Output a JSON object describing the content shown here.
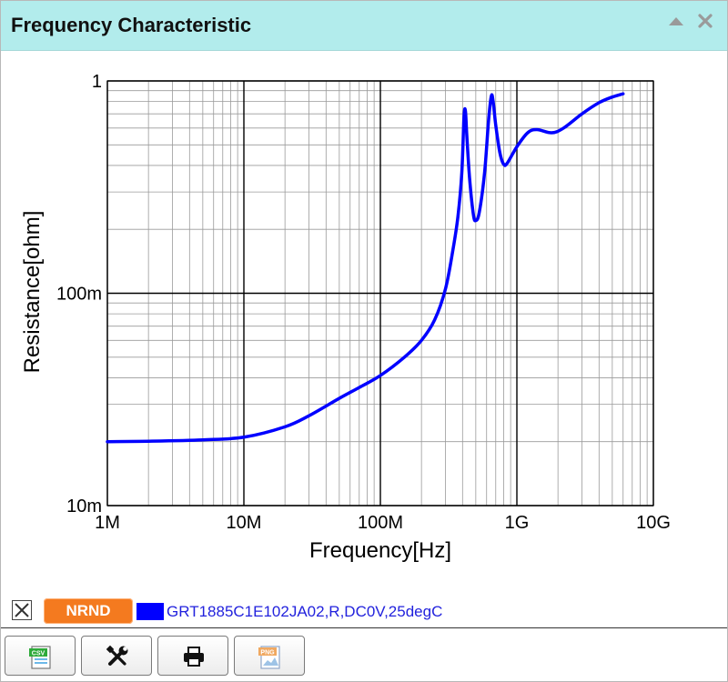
{
  "window": {
    "title": "Frequency Characteristic"
  },
  "legend": {
    "badge": "NRND",
    "label": "GRT1885C1E102JA02,R,DC0V,25degC",
    "color": "#0000ff"
  },
  "toolbar": {
    "buttons": [
      {
        "icon": "csv-icon"
      },
      {
        "icon": "settings-tools-icon"
      },
      {
        "icon": "print-icon"
      },
      {
        "icon": "png-icon"
      }
    ]
  },
  "chart_data": {
    "type": "line",
    "x_scale": "log",
    "y_scale": "log",
    "xlabel": "Frequency[Hz]",
    "ylabel": "Resistance[ohm]",
    "xlim": [
      1000000,
      10000000000
    ],
    "ylim": [
      0.01,
      1
    ],
    "grid": true,
    "x_ticks": [
      {
        "value": 1000000,
        "label": "1M"
      },
      {
        "value": 10000000,
        "label": "10M"
      },
      {
        "value": 100000000,
        "label": "100M"
      },
      {
        "value": 1000000000,
        "label": "1G"
      },
      {
        "value": 10000000000,
        "label": "10G"
      }
    ],
    "y_ticks": [
      {
        "value": 0.01,
        "label": "10m"
      },
      {
        "value": 0.1,
        "label": "100m"
      },
      {
        "value": 1,
        "label": "1"
      }
    ],
    "series": [
      {
        "name": "GRT1885C1E102JA02,R,DC0V,25degC",
        "color": "#0000ff",
        "points": [
          [
            1000000,
            0.02
          ],
          [
            2000000,
            0.0201
          ],
          [
            5000000,
            0.0204
          ],
          [
            10000000,
            0.021
          ],
          [
            20000000,
            0.0235
          ],
          [
            30000000,
            0.0265
          ],
          [
            50000000,
            0.032
          ],
          [
            70000000,
            0.036
          ],
          [
            100000000,
            0.041
          ],
          [
            150000000,
            0.05
          ],
          [
            200000000,
            0.06
          ],
          [
            250000000,
            0.075
          ],
          [
            300000000,
            0.105
          ],
          [
            340000000,
            0.16
          ],
          [
            370000000,
            0.23
          ],
          [
            395000000,
            0.37
          ],
          [
            410000000,
            0.68
          ],
          [
            420000000,
            0.72
          ],
          [
            430000000,
            0.55
          ],
          [
            450000000,
            0.35
          ],
          [
            480000000,
            0.235
          ],
          [
            500000000,
            0.22
          ],
          [
            530000000,
            0.24
          ],
          [
            580000000,
            0.37
          ],
          [
            620000000,
            0.65
          ],
          [
            650000000,
            0.85
          ],
          [
            670000000,
            0.8
          ],
          [
            700000000,
            0.62
          ],
          [
            750000000,
            0.46
          ],
          [
            800000000,
            0.405
          ],
          [
            850000000,
            0.41
          ],
          [
            1000000000,
            0.49
          ],
          [
            1200000000,
            0.57
          ],
          [
            1400000000,
            0.59
          ],
          [
            1800000000,
            0.57
          ],
          [
            2200000000,
            0.6
          ],
          [
            3000000000,
            0.7
          ],
          [
            4000000000,
            0.79
          ],
          [
            5000000000,
            0.84
          ],
          [
            6000000000,
            0.87
          ]
        ]
      }
    ]
  }
}
